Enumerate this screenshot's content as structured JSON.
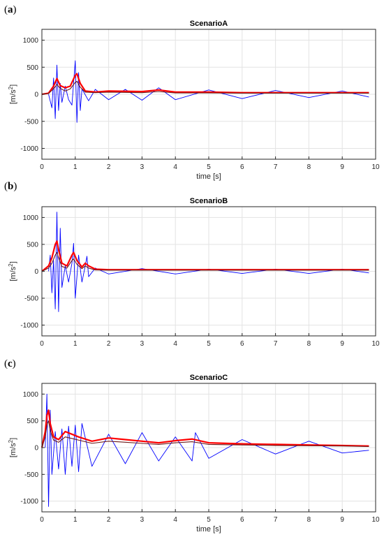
{
  "chart_data": [
    {
      "panel": "(a)",
      "type": "line",
      "title": "ScenarioA",
      "xlabel": "time [s]",
      "ylabel": "[m/s^2]",
      "xlim": [
        0,
        10
      ],
      "ylim": [
        -1200,
        1200
      ],
      "xticks": [
        0,
        1,
        2,
        3,
        4,
        5,
        6,
        7,
        8,
        9,
        10
      ],
      "yticks": [
        -1000,
        -500,
        0,
        500,
        1000
      ],
      "grid": true,
      "series": [
        {
          "color": "#0000ff",
          "x": [
            0.2,
            0.3,
            0.35,
            0.4,
            0.45,
            0.5,
            0.55,
            0.6,
            0.7,
            0.8,
            0.9,
            1.0,
            1.05,
            1.1,
            1.15,
            1.2,
            1.4,
            1.6,
            2.0,
            2.5,
            3.0,
            3.5,
            4.0,
            5.0,
            6.0,
            7.0,
            8.0,
            9.0,
            9.8
          ],
          "y": [
            0,
            -250,
            300,
            -450,
            540,
            -300,
            200,
            -150,
            150,
            -100,
            -200,
            620,
            -520,
            400,
            -300,
            100,
            -120,
            90,
            -100,
            90,
            -110,
            120,
            -100,
            80,
            -80,
            70,
            -60,
            60,
            -50
          ]
        },
        {
          "color": "#ff0000",
          "x": [
            0,
            0.2,
            0.35,
            0.45,
            0.55,
            0.7,
            0.85,
            1.0,
            1.05,
            1.15,
            1.3,
            1.6,
            2.0,
            3.0,
            3.5,
            4.0,
            5.0,
            6.0,
            7.0,
            8.0,
            9.0,
            9.8
          ],
          "y": [
            0,
            20,
            150,
            290,
            160,
            120,
            150,
            350,
            380,
            200,
            60,
            40,
            60,
            50,
            80,
            40,
            40,
            30,
            30,
            30,
            30,
            30
          ]
        },
        {
          "color": "#6b1a1a",
          "x": [
            0,
            0.2,
            0.35,
            0.45,
            0.55,
            0.7,
            0.85,
            1.0,
            1.05,
            1.15,
            1.3,
            1.6,
            2.0,
            3.0,
            3.5,
            4.0,
            5.0,
            6.0,
            7.0,
            8.0,
            9.0,
            9.8
          ],
          "y": [
            0,
            15,
            100,
            180,
            110,
            60,
            100,
            220,
            240,
            130,
            40,
            30,
            40,
            30,
            50,
            25,
            25,
            20,
            20,
            20,
            20,
            20
          ]
        }
      ]
    },
    {
      "panel": "(b)",
      "type": "line",
      "title": "ScenarioB",
      "xlabel": "",
      "ylabel": "[m/s^2]",
      "xlim": [
        0,
        10
      ],
      "ylim": [
        -1200,
        1200
      ],
      "xticks": [
        0,
        1,
        2,
        3,
        4,
        5,
        6,
        7,
        8,
        9,
        10
      ],
      "yticks": [
        -1000,
        -500,
        0,
        500,
        1000
      ],
      "grid": true,
      "series": [
        {
          "color": "#0000ff",
          "x": [
            0.2,
            0.25,
            0.3,
            0.35,
            0.4,
            0.45,
            0.5,
            0.55,
            0.6,
            0.7,
            0.8,
            0.9,
            0.95,
            1.0,
            1.1,
            1.2,
            1.3,
            1.35,
            1.4,
            1.6,
            2.0,
            3.0,
            4.0,
            5.0,
            6.0,
            7.0,
            8.0,
            9.0,
            9.8
          ],
          "y": [
            0,
            300,
            -400,
            200,
            -700,
            1100,
            -750,
            800,
            -300,
            100,
            -200,
            150,
            520,
            -500,
            300,
            -200,
            100,
            280,
            -100,
            60,
            -50,
            50,
            -50,
            40,
            -40,
            40,
            -40,
            40,
            -30
          ]
        },
        {
          "color": "#ff0000",
          "x": [
            0,
            0.2,
            0.3,
            0.4,
            0.45,
            0.5,
            0.6,
            0.75,
            0.9,
            0.95,
            1.05,
            1.2,
            1.3,
            1.4,
            1.6,
            2.0,
            3.0,
            4.0,
            5.0,
            6.0,
            7.0,
            8.0,
            9.0,
            9.8
          ],
          "y": [
            0,
            100,
            250,
            500,
            560,
            400,
            150,
            100,
            300,
            350,
            200,
            80,
            150,
            100,
            40,
            30,
            30,
            30,
            30,
            30,
            30,
            30,
            30,
            30
          ]
        },
        {
          "color": "#6b1a1a",
          "x": [
            0,
            0.2,
            0.3,
            0.4,
            0.45,
            0.5,
            0.6,
            0.75,
            0.9,
            0.95,
            1.05,
            1.2,
            1.3,
            1.4,
            1.6,
            2.0,
            3.0,
            4.0,
            5.0,
            6.0,
            7.0,
            8.0,
            9.0,
            9.8
          ],
          "y": [
            0,
            60,
            150,
            300,
            350,
            250,
            90,
            60,
            200,
            230,
            130,
            50,
            100,
            60,
            25,
            20,
            20,
            20,
            20,
            20,
            20,
            20,
            20,
            20
          ]
        }
      ]
    },
    {
      "panel": "(c)",
      "type": "line",
      "title": "ScenarioC",
      "xlabel": "time [s]",
      "ylabel": "[m/s^2]",
      "xlim": [
        0,
        10
      ],
      "ylim": [
        -1200,
        1200
      ],
      "xticks": [
        0,
        1,
        2,
        3,
        4,
        5,
        6,
        7,
        8,
        9,
        10
      ],
      "yticks": [
        -1000,
        -500,
        0,
        500,
        1000
      ],
      "grid": true,
      "series": [
        {
          "color": "#0000ff",
          "x": [
            0.1,
            0.15,
            0.2,
            0.25,
            0.3,
            0.4,
            0.5,
            0.6,
            0.7,
            0.8,
            0.9,
            1.0,
            1.1,
            1.2,
            1.5,
            2.0,
            2.5,
            3.0,
            3.5,
            4.0,
            4.5,
            4.6,
            5.0,
            6.0,
            7.0,
            8.0,
            9.0,
            9.8
          ],
          "y": [
            0,
            1000,
            -1100,
            700,
            -500,
            300,
            -400,
            350,
            -500,
            400,
            -350,
            420,
            -450,
            450,
            -350,
            250,
            -300,
            280,
            -250,
            200,
            -250,
            280,
            -200,
            150,
            -120,
            120,
            -100,
            -50
          ]
        },
        {
          "color": "#ff0000",
          "x": [
            0,
            0.1,
            0.15,
            0.2,
            0.25,
            0.35,
            0.5,
            0.7,
            0.9,
            1.1,
            1.5,
            2.0,
            2.5,
            3.0,
            3.5,
            4.0,
            4.5,
            5.0,
            6.0,
            7.0,
            8.0,
            9.0,
            9.8
          ],
          "y": [
            0,
            300,
            600,
            700,
            450,
            200,
            150,
            300,
            250,
            200,
            120,
            180,
            150,
            120,
            90,
            130,
            160,
            90,
            70,
            60,
            50,
            40,
            30
          ]
        },
        {
          "color": "#6b1a1a",
          "x": [
            0,
            0.1,
            0.15,
            0.2,
            0.25,
            0.35,
            0.5,
            0.7,
            0.9,
            1.1,
            1.5,
            2.0,
            2.5,
            3.0,
            3.5,
            4.0,
            4.5,
            5.0,
            6.0,
            7.0,
            8.0,
            9.0,
            9.8
          ],
          "y": [
            0,
            200,
            420,
            500,
            320,
            140,
            100,
            200,
            170,
            140,
            80,
            120,
            100,
            80,
            60,
            90,
            110,
            60,
            50,
            40,
            35,
            30,
            20
          ]
        }
      ]
    }
  ]
}
